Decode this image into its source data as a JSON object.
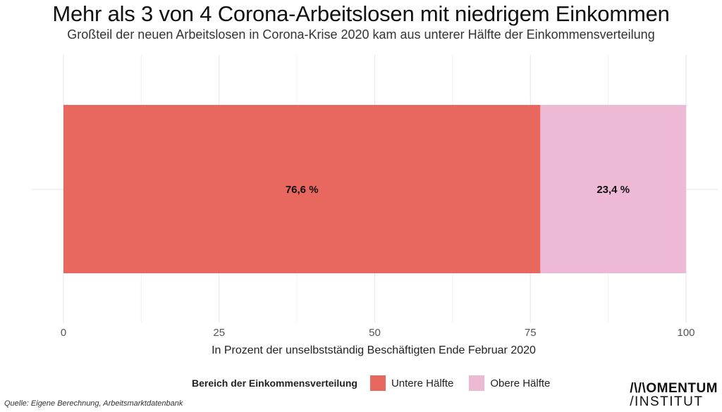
{
  "chart_data": {
    "type": "bar",
    "orientation": "horizontal",
    "stacked": true,
    "title": "Mehr als 3 von 4 Corona-Arbeitslosen mit niedrigem Einkommen",
    "subtitle": "Großteil der neuen Arbeitslosen in Corona-Krise 2020 kam aus unterer Hälfte der Einkommensverteilung",
    "xlabel": "In Prozent der unselbstständig Beschäftigten Ende Februar 2020",
    "ylabel": "",
    "xlim": [
      0,
      100
    ],
    "x_ticks": [
      "0",
      "25",
      "50",
      "75",
      "100"
    ],
    "grid": true,
    "legend_position": "bottom",
    "legend_title": "Bereich der Einkommensverteilung",
    "series": [
      {
        "name": "Untere Hälfte",
        "value": 76.6,
        "label": "76,6 %",
        "color": "#e8675f"
      },
      {
        "name": "Obere Hälfte",
        "value": 23.4,
        "label": "23,4 %",
        "color": "#edb9d4"
      }
    ]
  },
  "footer": {
    "source": "Quelle: Eigene Berechnung, Arbeitsmarktdatenbank",
    "logo_line1": "/\\/\\OMENTUM",
    "logo_line2": "/INSTITUT"
  }
}
